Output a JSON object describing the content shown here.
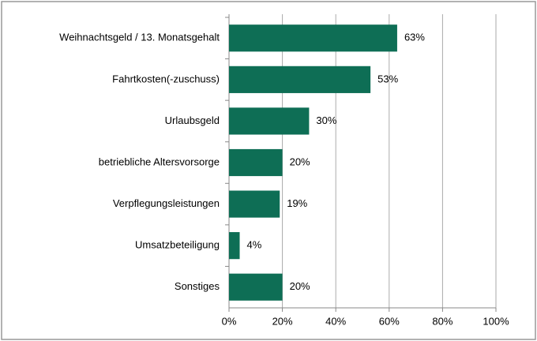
{
  "chart_data": {
    "type": "bar",
    "orientation": "horizontal",
    "categories": [
      "Weihnachtsgeld / 13. Monatsgehalt",
      "Fahrtkosten(-zuschuss)",
      "Urlaubsgeld",
      "betriebliche Altersvorsorge",
      "Verpflegungsleistungen",
      "Umsatzbeteiligung",
      "Sonstiges"
    ],
    "values": [
      63,
      53,
      30,
      20,
      19,
      4,
      20
    ],
    "value_labels": [
      "63%",
      "53%",
      "30%",
      "20%",
      "19%",
      "4%",
      "20%"
    ],
    "color": "#0e6e55",
    "xlim": [
      0,
      100
    ],
    "xticks": [
      {
        "value": 0,
        "label": "0%"
      },
      {
        "value": 20,
        "label": "20%"
      },
      {
        "value": 40,
        "label": "40%"
      },
      {
        "value": 60,
        "label": "60%"
      },
      {
        "value": 80,
        "label": "80%"
      },
      {
        "value": 100,
        "label": "100%"
      }
    ],
    "grid": true
  }
}
